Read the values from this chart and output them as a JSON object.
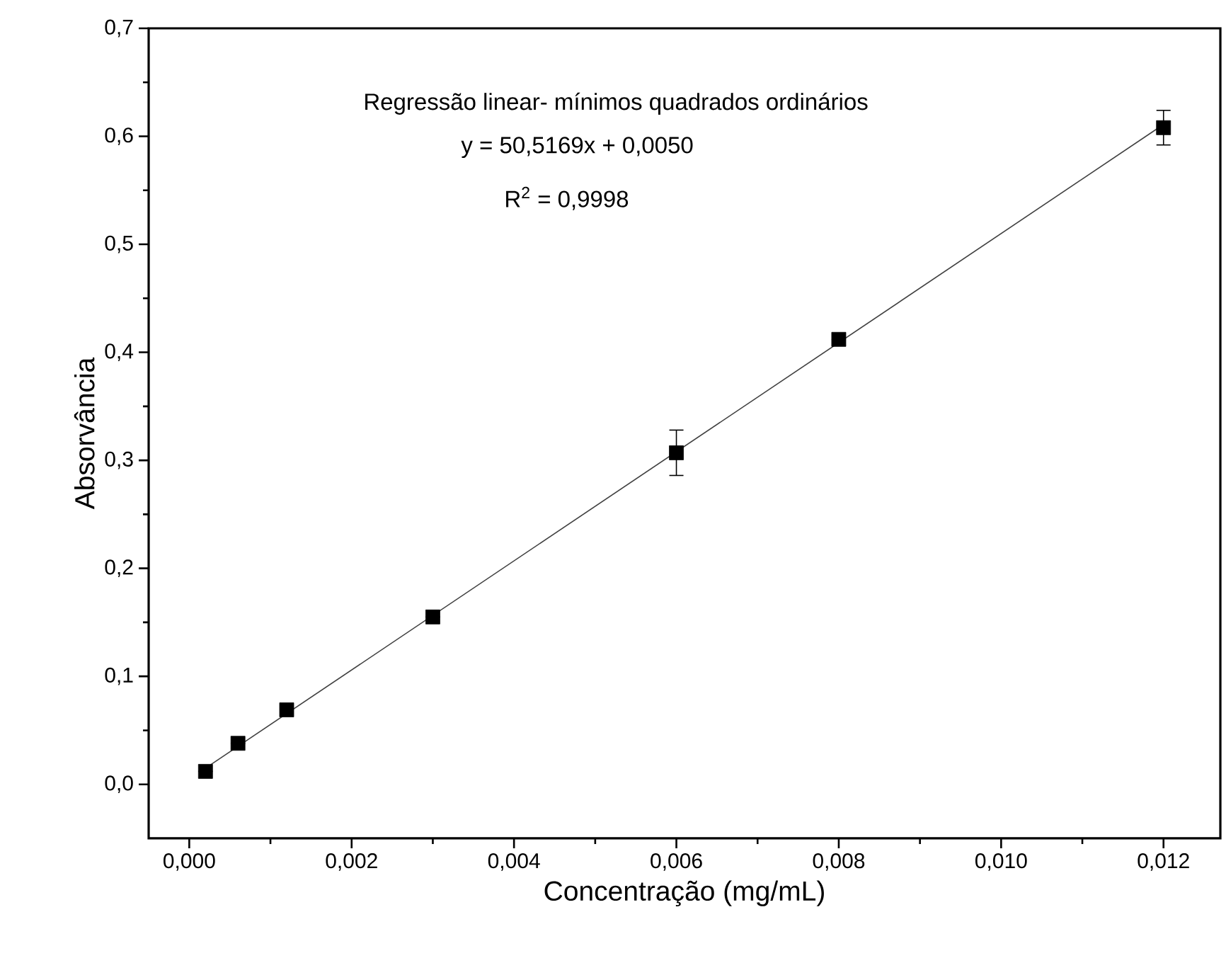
{
  "chart_data": {
    "type": "scatter",
    "xlabel": "Concentração (mg/mL)",
    "ylabel": "Absorvância",
    "annotations": [
      "Regressão linear- mínimos quadrados ordinários",
      "y = 50,5169x + 0,0050",
      "R$^{2}$ = 0,9998"
    ],
    "xlim": [
      -0.0005,
      0.0127
    ],
    "ylim": [
      -0.05,
      0.7
    ],
    "xticks": [
      {
        "value": 0,
        "label": "0,000"
      },
      {
        "value": 0.002,
        "label": "0,002"
      },
      {
        "value": 0.004,
        "label": "0,004"
      },
      {
        "value": 0.006,
        "label": "0,006"
      },
      {
        "value": 0.008,
        "label": "0,008"
      },
      {
        "value": 0.01,
        "label": "0,010"
      },
      {
        "value": 0.012,
        "label": "0,012"
      }
    ],
    "yticks": [
      {
        "value": 0,
        "label": "0,0"
      },
      {
        "value": 0.1,
        "label": "0,1"
      },
      {
        "value": 0.2,
        "label": "0,2"
      },
      {
        "value": 0.3,
        "label": "0,3"
      },
      {
        "value": 0.4,
        "label": "0,4"
      },
      {
        "value": 0.5,
        "label": "0,5"
      },
      {
        "value": 0.6,
        "label": "0,6"
      },
      {
        "value": 0.7,
        "label": "0,7"
      }
    ],
    "grid": false,
    "series": [
      {
        "marker": "square",
        "color": "#000000",
        "x": [
          0.0002,
          0.0006,
          0.0012,
          0.003,
          0.006,
          0.008,
          0.012
        ],
        "values": [
          0.012,
          0.038,
          0.069,
          0.155,
          0.307,
          0.412,
          0.608
        ],
        "errors": [
          null,
          null,
          null,
          null,
          0.021,
          null,
          0.016
        ]
      },
      {
        "type": "line",
        "marker": "none",
        "line_style": "solid",
        "color": "#404040",
        "x": [
          0.0002,
          0.012
        ],
        "values": [
          0.015,
          0.611
        ]
      }
    ]
  }
}
